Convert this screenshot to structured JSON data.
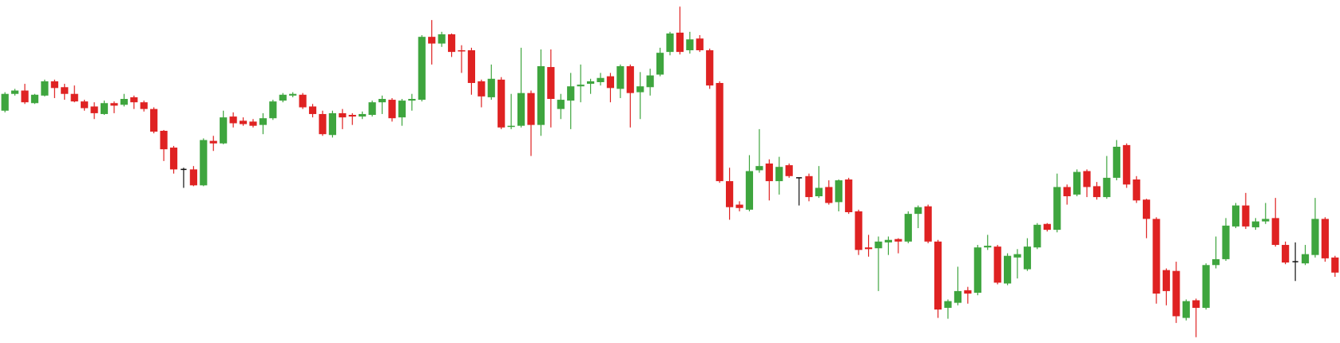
{
  "chart_data": {
    "type": "candlestick",
    "open": [
      275,
      295,
      299,
      284,
      293,
      310,
      303,
      295,
      286,
      280,
      271,
      284,
      282,
      291,
      285,
      277,
      251,
      231,
      205,
      205,
      186,
      239,
      236,
      268,
      263,
      262,
      258,
      266,
      287,
      293,
      294,
      280,
      271,
      246,
      272,
      270,
      268,
      270,
      285,
      288,
      267,
      287,
      288,
      363,
      355,
      366,
      347,
      347,
      310,
      291,
      312,
      256,
      257,
      296,
      258,
      327,
      277,
      287,
      304,
      307,
      309,
      316,
      301,
      328,
      297,
      303,
      318,
      345,
      368,
      347,
      361,
      347,
      308,
      191,
      163,
      157,
      204,
      212,
      191,
      210,
      195,
      197,
      173,
      184,
      166,
      193,
      155,
      112,
      111,
      118,
      122,
      119,
      152,
      161,
      119,
      40,
      46,
      61,
      58,
      112,
      113,
      69,
      100,
      86,
      112,
      140,
      133,
      184,
      175,
      203,
      185,
      172,
      195,
      234,
      193,
      169,
      146,
      85,
      84,
      28,
      49,
      40,
      91,
      98,
      137,
      162,
      136,
      143,
      147,
      115,
      95,
      93,
      103,
      146,
      100
    ],
    "high": [
      297,
      301,
      307,
      295,
      312,
      312,
      307,
      305,
      288,
      285,
      287,
      286,
      295,
      293,
      287,
      279,
      252,
      233,
      207,
      209,
      242,
      245,
      275,
      273,
      267,
      265,
      272,
      288,
      296,
      297,
      296,
      283,
      275,
      275,
      277,
      272,
      274,
      287,
      293,
      290,
      289,
      295,
      365,
      383,
      369,
      367,
      353,
      350,
      312,
      330,
      315,
      295,
      350,
      299,
      348,
      348,
      295,
      320,
      330,
      313,
      320,
      320,
      330,
      330,
      321,
      325,
      350,
      369,
      399,
      369,
      365,
      349,
      310,
      207,
      167,
      222,
      253,
      217,
      220,
      212,
      195,
      200,
      209,
      192,
      193,
      195,
      157,
      127,
      125,
      125,
      123,
      155,
      162,
      163,
      121,
      50,
      89,
      65,
      115,
      127,
      115,
      105,
      110,
      123,
      141,
      141,
      200,
      187,
      205,
      205,
      190,
      221,
      240,
      236,
      197,
      170,
      148,
      87,
      95,
      50,
      51,
      93,
      125,
      147,
      165,
      177,
      147,
      165,
      171,
      119,
      118,
      115,
      171,
      148,
      102
    ],
    "low": [
      273,
      293,
      283,
      283,
      292,
      290,
      288,
      285,
      275,
      265,
      270,
      272,
      280,
      277,
      274,
      248,
      215,
      200,
      183,
      185,
      185,
      227,
      235,
      255,
      257,
      255,
      247,
      264,
      285,
      291,
      277,
      267,
      245,
      243,
      253,
      258,
      265,
      268,
      271,
      262,
      257,
      275,
      286,
      330,
      351,
      339,
      320,
      294,
      279,
      288,
      253,
      253,
      255,
      221,
      245,
      255,
      265,
      253,
      285,
      295,
      305,
      285,
      290,
      255,
      265,
      293,
      316,
      341,
      342,
      343,
      345,
      301,
      189,
      145,
      155,
      155,
      201,
      168,
      175,
      195,
      162,
      167,
      171,
      163,
      155,
      152,
      103,
      101,
      60,
      103,
      105,
      117,
      135,
      117,
      28,
      27,
      43,
      45,
      55,
      109,
      68,
      67,
      75,
      84,
      110,
      131,
      130,
      163,
      173,
      172,
      169,
      170,
      192,
      183,
      165,
      123,
      45,
      43,
      22,
      25,
      5,
      38,
      87,
      96,
      135,
      134,
      133,
      140,
      113,
      92,
      72,
      91,
      100,
      95,
      77
    ],
    "close": [
      295,
      299,
      285,
      294,
      310,
      302,
      295,
      286,
      278,
      272,
      284,
      281,
      289,
      285,
      277,
      250,
      229,
      205,
      205,
      186,
      240,
      236,
      267,
      260,
      259,
      257,
      266,
      286,
      294,
      295,
      279,
      271,
      247,
      272,
      267,
      268,
      271,
      285,
      289,
      266,
      287,
      289,
      363,
      355,
      366,
      345,
      346,
      308,
      292,
      313,
      255,
      257,
      296,
      258,
      328,
      289,
      288,
      304,
      306,
      310,
      314,
      302,
      328,
      296,
      304,
      317,
      344,
      367,
      345,
      360,
      347,
      305,
      191,
      160,
      159,
      203,
      209,
      191,
      208,
      197,
      195,
      172,
      183,
      165,
      192,
      154,
      109,
      110,
      119,
      121,
      119,
      152,
      160,
      119,
      38,
      48,
      60,
      57,
      112,
      114,
      70,
      102,
      104,
      113,
      139,
      133,
      184,
      173,
      202,
      184,
      172,
      195,
      232,
      187,
      168,
      146,
      57,
      60,
      30,
      48,
      40,
      91,
      98,
      138,
      162,
      137,
      143,
      146,
      115,
      94,
      95,
      104,
      146,
      99,
      82
    ],
    "up_color": "#3ea53e",
    "down_color": "#df2222",
    "flat_color": "#111111",
    "ylim": [
      0,
      405
    ]
  }
}
